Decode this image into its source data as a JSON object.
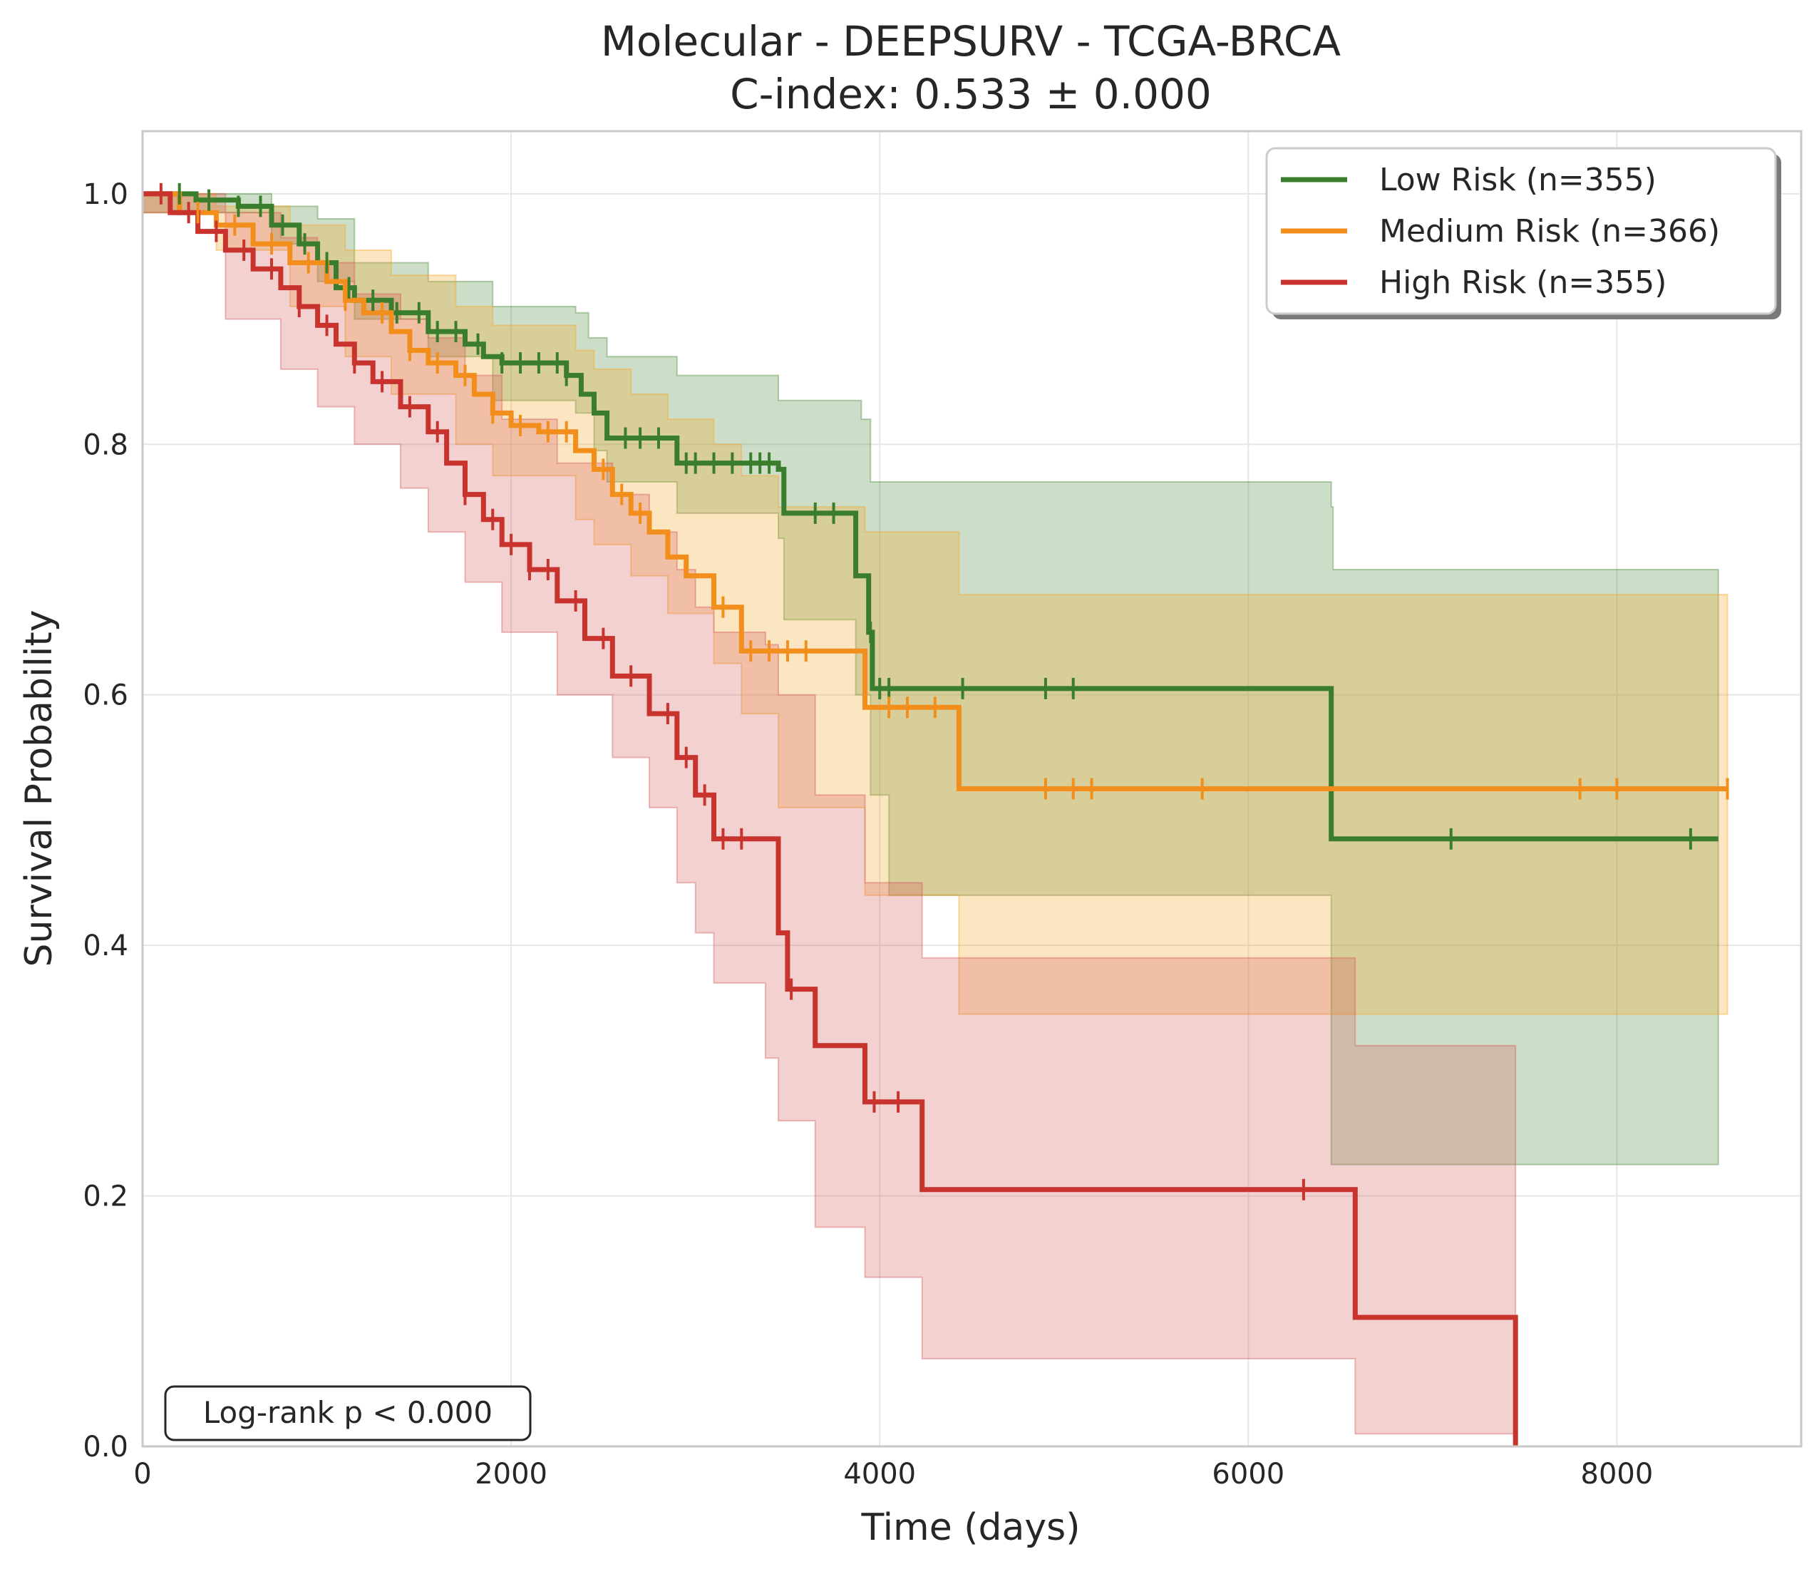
{
  "chart_data": {
    "type": "line",
    "title": "Molecular - DEEPSURV - TCGA-BRCA",
    "subtitle": "C-index: 0.533 ± 0.000",
    "xlabel": "Time (days)",
    "ylabel": "Survival Probability",
    "xlim": [
      0,
      9000
    ],
    "ylim": [
      0,
      1.05
    ],
    "x_ticks": [
      "0",
      "2000",
      "4000",
      "6000",
      "8000"
    ],
    "y_ticks": [
      "0.0",
      "0.2",
      "0.4",
      "0.6",
      "0.8",
      "1.0"
    ],
    "grid": true,
    "legend_position": "top-right",
    "annotation": "Log-rank p < 0.000",
    "series": [
      {
        "name": "Low Risk (n=355)",
        "color": "#3a7d2c",
        "fill": "#4a8a3a",
        "steps": [
          [
            0,
            1.0
          ],
          [
            290,
            0.995
          ],
          [
            520,
            0.99
          ],
          [
            700,
            0.975
          ],
          [
            850,
            0.96
          ],
          [
            950,
            0.945
          ],
          [
            1050,
            0.925
          ],
          [
            1150,
            0.915
          ],
          [
            1350,
            0.905
          ],
          [
            1550,
            0.89
          ],
          [
            1750,
            0.88
          ],
          [
            1850,
            0.87
          ],
          [
            1950,
            0.865
          ],
          [
            2300,
            0.855
          ],
          [
            2380,
            0.84
          ],
          [
            2450,
            0.825
          ],
          [
            2520,
            0.805
          ],
          [
            2900,
            0.785
          ],
          [
            3450,
            0.78
          ],
          [
            3480,
            0.745
          ],
          [
            3870,
            0.695
          ],
          [
            3940,
            0.65
          ],
          [
            3960,
            0.605
          ],
          [
            6450,
            0.485
          ],
          [
            8550,
            0.485
          ]
        ],
        "ci_upper": [
          [
            0,
            1.0
          ],
          [
            700,
            0.99
          ],
          [
            950,
            0.98
          ],
          [
            1150,
            0.945
          ],
          [
            1550,
            0.93
          ],
          [
            1900,
            0.91
          ],
          [
            2350,
            0.905
          ],
          [
            2420,
            0.885
          ],
          [
            2520,
            0.87
          ],
          [
            2900,
            0.855
          ],
          [
            3450,
            0.835
          ],
          [
            3900,
            0.82
          ],
          [
            3950,
            0.77
          ],
          [
            6450,
            0.75
          ],
          [
            6460,
            0.7
          ],
          [
            8550,
            0.7
          ]
        ],
        "ci_lower": [
          [
            0,
            0.985
          ],
          [
            700,
            0.96
          ],
          [
            950,
            0.93
          ],
          [
            1150,
            0.9
          ],
          [
            1550,
            0.87
          ],
          [
            1900,
            0.835
          ],
          [
            2350,
            0.825
          ],
          [
            2450,
            0.795
          ],
          [
            2520,
            0.77
          ],
          [
            2900,
            0.745
          ],
          [
            3450,
            0.725
          ],
          [
            3480,
            0.66
          ],
          [
            3870,
            0.6
          ],
          [
            3950,
            0.52
          ],
          [
            4050,
            0.44
          ],
          [
            4450,
            0.44
          ],
          [
            6450,
            0.225
          ],
          [
            8550,
            0.225
          ]
        ],
        "censors": [
          200,
          360,
          520,
          640,
          760,
          880,
          1000,
          1120,
          1250,
          1380,
          1500,
          1600,
          1700,
          1820,
          1950,
          2050,
          2150,
          2250,
          2300,
          2620,
          2700,
          2800,
          2950,
          3000,
          3100,
          3200,
          3300,
          3350,
          3400,
          3650,
          3750,
          3950,
          4000,
          4050,
          4450,
          4900,
          5050,
          7100,
          8400
        ]
      },
      {
        "name": "Medium Risk (n=366)",
        "color": "#f28e1c",
        "fill": "#f5a623",
        "steps": [
          [
            0,
            1.0
          ],
          [
            200,
            0.985
          ],
          [
            400,
            0.975
          ],
          [
            600,
            0.96
          ],
          [
            800,
            0.945
          ],
          [
            1000,
            0.93
          ],
          [
            1100,
            0.915
          ],
          [
            1200,
            0.905
          ],
          [
            1350,
            0.89
          ],
          [
            1450,
            0.875
          ],
          [
            1550,
            0.865
          ],
          [
            1700,
            0.855
          ],
          [
            1800,
            0.84
          ],
          [
            1900,
            0.825
          ],
          [
            2000,
            0.815
          ],
          [
            2150,
            0.81
          ],
          [
            2350,
            0.795
          ],
          [
            2450,
            0.78
          ],
          [
            2550,
            0.76
          ],
          [
            2650,
            0.745
          ],
          [
            2750,
            0.73
          ],
          [
            2850,
            0.71
          ],
          [
            2950,
            0.695
          ],
          [
            3100,
            0.67
          ],
          [
            3250,
            0.635
          ],
          [
            3400,
            0.635
          ],
          [
            3920,
            0.59
          ],
          [
            4430,
            0.525
          ],
          [
            8600,
            0.525
          ]
        ],
        "ci_upper": [
          [
            0,
            1.0
          ],
          [
            400,
            0.99
          ],
          [
            800,
            0.975
          ],
          [
            1100,
            0.955
          ],
          [
            1350,
            0.935
          ],
          [
            1700,
            0.91
          ],
          [
            1900,
            0.895
          ],
          [
            2350,
            0.875
          ],
          [
            2450,
            0.86
          ],
          [
            2650,
            0.84
          ],
          [
            2850,
            0.82
          ],
          [
            3100,
            0.8
          ],
          [
            3250,
            0.775
          ],
          [
            3450,
            0.75
          ],
          [
            3920,
            0.73
          ],
          [
            4430,
            0.68
          ],
          [
            8600,
            0.68
          ]
        ],
        "ci_lower": [
          [
            0,
            0.985
          ],
          [
            400,
            0.955
          ],
          [
            800,
            0.91
          ],
          [
            1100,
            0.87
          ],
          [
            1350,
            0.84
          ],
          [
            1700,
            0.8
          ],
          [
            1900,
            0.775
          ],
          [
            2350,
            0.74
          ],
          [
            2450,
            0.72
          ],
          [
            2650,
            0.695
          ],
          [
            2850,
            0.665
          ],
          [
            3100,
            0.625
          ],
          [
            3250,
            0.585
          ],
          [
            3450,
            0.51
          ],
          [
            3920,
            0.44
          ],
          [
            4430,
            0.345
          ],
          [
            8600,
            0.345
          ]
        ],
        "censors": [
          300,
          500,
          700,
          900,
          1100,
          1300,
          1450,
          1600,
          1750,
          1900,
          2050,
          2200,
          2300,
          2500,
          2600,
          2700,
          3150,
          3300,
          3400,
          3500,
          3600,
          4050,
          4150,
          4300,
          4900,
          5050,
          5150,
          5750,
          7800,
          8000,
          8600
        ]
      },
      {
        "name": "High Risk (n=355)",
        "color": "#c8332d",
        "fill": "#d45a5a",
        "steps": [
          [
            0,
            1.0
          ],
          [
            150,
            0.985
          ],
          [
            300,
            0.97
          ],
          [
            450,
            0.955
          ],
          [
            600,
            0.94
          ],
          [
            750,
            0.925
          ],
          [
            850,
            0.91
          ],
          [
            950,
            0.895
          ],
          [
            1050,
            0.88
          ],
          [
            1150,
            0.865
          ],
          [
            1250,
            0.85
          ],
          [
            1400,
            0.83
          ],
          [
            1550,
            0.81
          ],
          [
            1650,
            0.785
          ],
          [
            1750,
            0.76
          ],
          [
            1850,
            0.74
          ],
          [
            1950,
            0.72
          ],
          [
            2100,
            0.7
          ],
          [
            2250,
            0.675
          ],
          [
            2400,
            0.645
          ],
          [
            2550,
            0.615
          ],
          [
            2750,
            0.585
          ],
          [
            2900,
            0.55
          ],
          [
            3000,
            0.52
          ],
          [
            3100,
            0.485
          ],
          [
            3380,
            0.485
          ],
          [
            3450,
            0.41
          ],
          [
            3500,
            0.365
          ],
          [
            3650,
            0.32
          ],
          [
            3920,
            0.275
          ],
          [
            4230,
            0.205
          ],
          [
            6580,
            0.103
          ],
          [
            7450,
            0.0
          ]
        ],
        "ci_upper": [
          [
            0,
            1.0
          ],
          [
            450,
            0.985
          ],
          [
            750,
            0.965
          ],
          [
            950,
            0.945
          ],
          [
            1150,
            0.92
          ],
          [
            1400,
            0.9
          ],
          [
            1550,
            0.885
          ],
          [
            1750,
            0.855
          ],
          [
            1950,
            0.82
          ],
          [
            2250,
            0.785
          ],
          [
            2550,
            0.76
          ],
          [
            2750,
            0.73
          ],
          [
            2900,
            0.7
          ],
          [
            3000,
            0.67
          ],
          [
            3100,
            0.65
          ],
          [
            3380,
            0.64
          ],
          [
            3450,
            0.6
          ],
          [
            3650,
            0.52
          ],
          [
            3920,
            0.45
          ],
          [
            4230,
            0.39
          ],
          [
            6580,
            0.32
          ],
          [
            7450,
            0.32
          ]
        ],
        "ci_lower": [
          [
            0,
            0.985
          ],
          [
            450,
            0.9
          ],
          [
            750,
            0.86
          ],
          [
            950,
            0.83
          ],
          [
            1150,
            0.8
          ],
          [
            1400,
            0.765
          ],
          [
            1550,
            0.73
          ],
          [
            1750,
            0.69
          ],
          [
            1950,
            0.65
          ],
          [
            2250,
            0.6
          ],
          [
            2550,
            0.55
          ],
          [
            2750,
            0.51
          ],
          [
            2900,
            0.45
          ],
          [
            3000,
            0.41
          ],
          [
            3100,
            0.37
          ],
          [
            3380,
            0.31
          ],
          [
            3450,
            0.26
          ],
          [
            3650,
            0.175
          ],
          [
            3920,
            0.135
          ],
          [
            4230,
            0.07
          ],
          [
            6580,
            0.01
          ],
          [
            7450,
            0.0
          ]
        ],
        "censors": [
          100,
          250,
          400,
          550,
          700,
          850,
          1000,
          1150,
          1300,
          1450,
          1600,
          1750,
          1900,
          2000,
          2100,
          2200,
          2350,
          2500,
          2650,
          2850,
          2950,
          3050,
          3150,
          3250,
          3520,
          3970,
          4100,
          6300
        ]
      }
    ]
  }
}
